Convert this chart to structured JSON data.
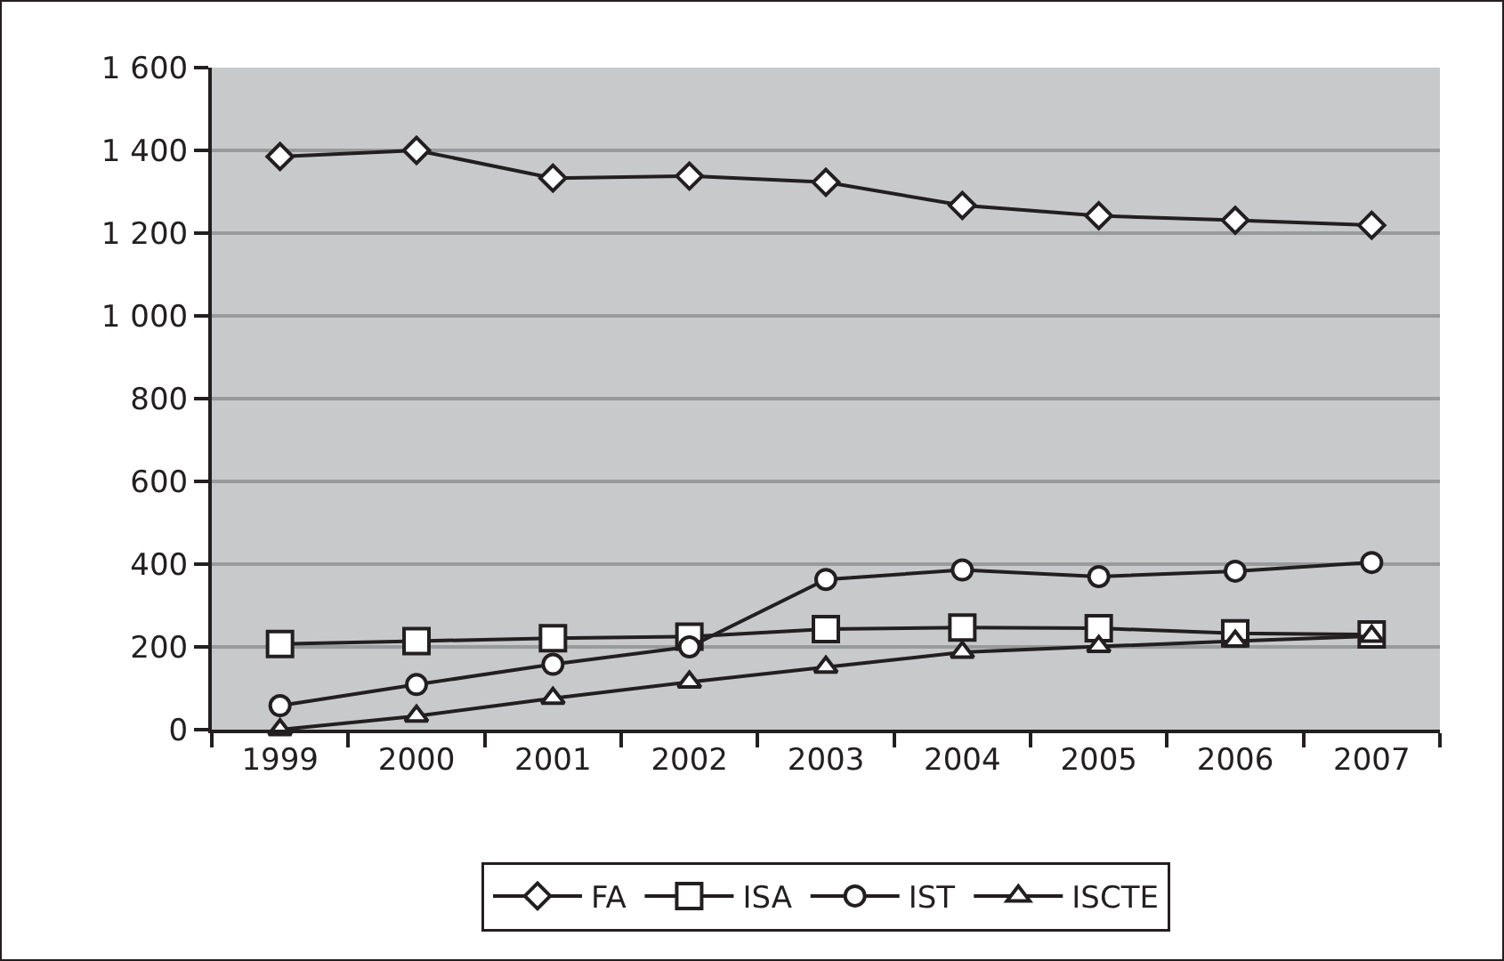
{
  "chart_data": {
    "type": "line",
    "categories": [
      "1999",
      "2000",
      "2001",
      "2002",
      "2003",
      "2004",
      "2005",
      "2006",
      "2007"
    ],
    "series": [
      {
        "name": "FA",
        "color": "#231f20",
        "marker": "diamond",
        "values": [
          1385,
          1400,
          1333,
          1338,
          1323,
          1267,
          1242,
          1231,
          1219
        ]
      },
      {
        "name": "ISA",
        "color": "#231f20",
        "marker": "square",
        "values": [
          207,
          214,
          221,
          225,
          243,
          247,
          245,
          233,
          230
        ]
      },
      {
        "name": "IST",
        "color": "#231f20",
        "marker": "circle",
        "values": [
          58,
          109,
          158,
          200,
          363,
          386,
          370,
          383,
          404
        ]
      },
      {
        "name": "ISCTE",
        "color": "#231f20",
        "marker": "triangle",
        "values": [
          0,
          33,
          76,
          115,
          151,
          187,
          201,
          214,
          226
        ]
      }
    ],
    "ylim": [
      0,
      1600
    ],
    "yticks": [
      0,
      200,
      400,
      600,
      800,
      {
        "value": 1000,
        "label": "1 000"
      },
      {
        "value": 1200,
        "label": "1 200"
      },
      {
        "value": 1400,
        "label": "1 400"
      },
      {
        "value": 1600,
        "label": "1 600"
      }
    ],
    "grid": "y",
    "legend": "bottom",
    "line_style": "solid"
  }
}
